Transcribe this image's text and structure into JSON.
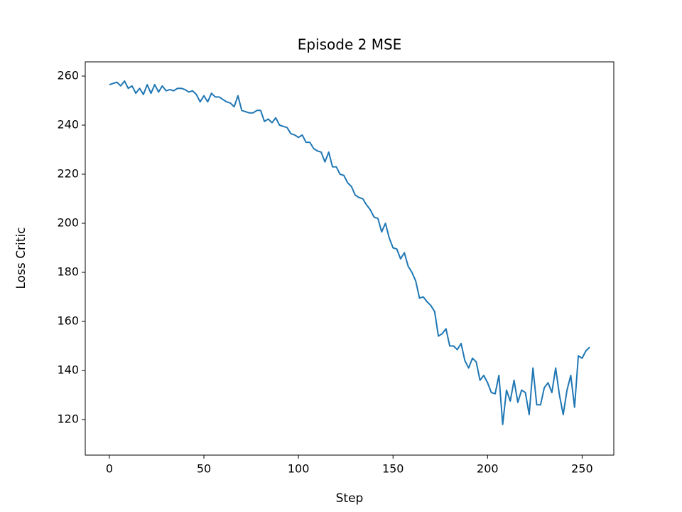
{
  "chart_data": {
    "type": "line",
    "title": "Episode 2 MSE",
    "x_label": "Step",
    "y_label": "Loss Critic",
    "color": "#1f77b4",
    "x": [
      0,
      2,
      4,
      6,
      8,
      10,
      12,
      14,
      16,
      18,
      20,
      22,
      24,
      26,
      28,
      30,
      32,
      34,
      36,
      38,
      40,
      42,
      44,
      46,
      48,
      50,
      52,
      54,
      56,
      58,
      60,
      62,
      64,
      66,
      68,
      70,
      72,
      74,
      76,
      78,
      80,
      82,
      84,
      86,
      88,
      90,
      92,
      94,
      96,
      98,
      100,
      102,
      104,
      106,
      108,
      110,
      112,
      114,
      116,
      118,
      120,
      122,
      124,
      126,
      128,
      130,
      132,
      134,
      136,
      138,
      140,
      142,
      144,
      146,
      148,
      150,
      152,
      154,
      156,
      158,
      160,
      162,
      164,
      166,
      168,
      170,
      172,
      174,
      176,
      178,
      180,
      182,
      184,
      186,
      188,
      190,
      192,
      194,
      196,
      198,
      200,
      202,
      204,
      206,
      208,
      210,
      212,
      214,
      216,
      218,
      220,
      222,
      224,
      226,
      228,
      230,
      232,
      234,
      236,
      238,
      240,
      242,
      244,
      246,
      248,
      250,
      252,
      254
    ],
    "values": [
      256.5,
      257,
      257.5,
      256,
      258,
      255,
      256,
      253,
      255,
      252.5,
      256.5,
      253,
      256.5,
      253.5,
      256,
      254,
      254.5,
      254,
      255,
      255,
      254.5,
      253.5,
      254,
      252.5,
      249.5,
      252,
      249.5,
      253,
      251.5,
      251.5,
      250.5,
      249.5,
      249,
      247.5,
      252,
      246,
      245.5,
      245,
      245,
      246,
      246,
      241.5,
      242.5,
      241,
      243,
      240,
      239.5,
      239,
      236.5,
      236,
      235,
      236,
      233,
      233,
      230.5,
      229.5,
      229,
      225,
      229,
      223,
      223,
      220,
      219.5,
      216.5,
      215,
      211.5,
      210.5,
      210,
      207.5,
      205.5,
      202.5,
      202,
      196.5,
      200,
      194,
      190,
      189.5,
      185.5,
      188,
      182.5,
      180,
      176.5,
      169.5,
      170,
      168,
      166.5,
      164,
      154,
      155,
      157,
      150,
      150,
      148.5,
      151,
      144,
      141,
      145,
      143.5,
      136,
      138,
      135,
      131,
      130.5,
      138,
      118,
      132,
      127.5,
      136,
      127,
      132,
      131,
      122,
      141,
      126,
      126,
      133,
      135,
      131,
      141,
      130,
      122,
      132,
      138,
      125,
      146,
      145,
      148,
      149.5
    ],
    "xlim": [
      -12.75,
      266.75
    ],
    "ylim": [
      105.5,
      265.8
    ],
    "xticks": [
      0,
      50,
      100,
      150,
      200,
      250
    ],
    "yticks": [
      120,
      140,
      160,
      180,
      200,
      220,
      240,
      260
    ]
  }
}
